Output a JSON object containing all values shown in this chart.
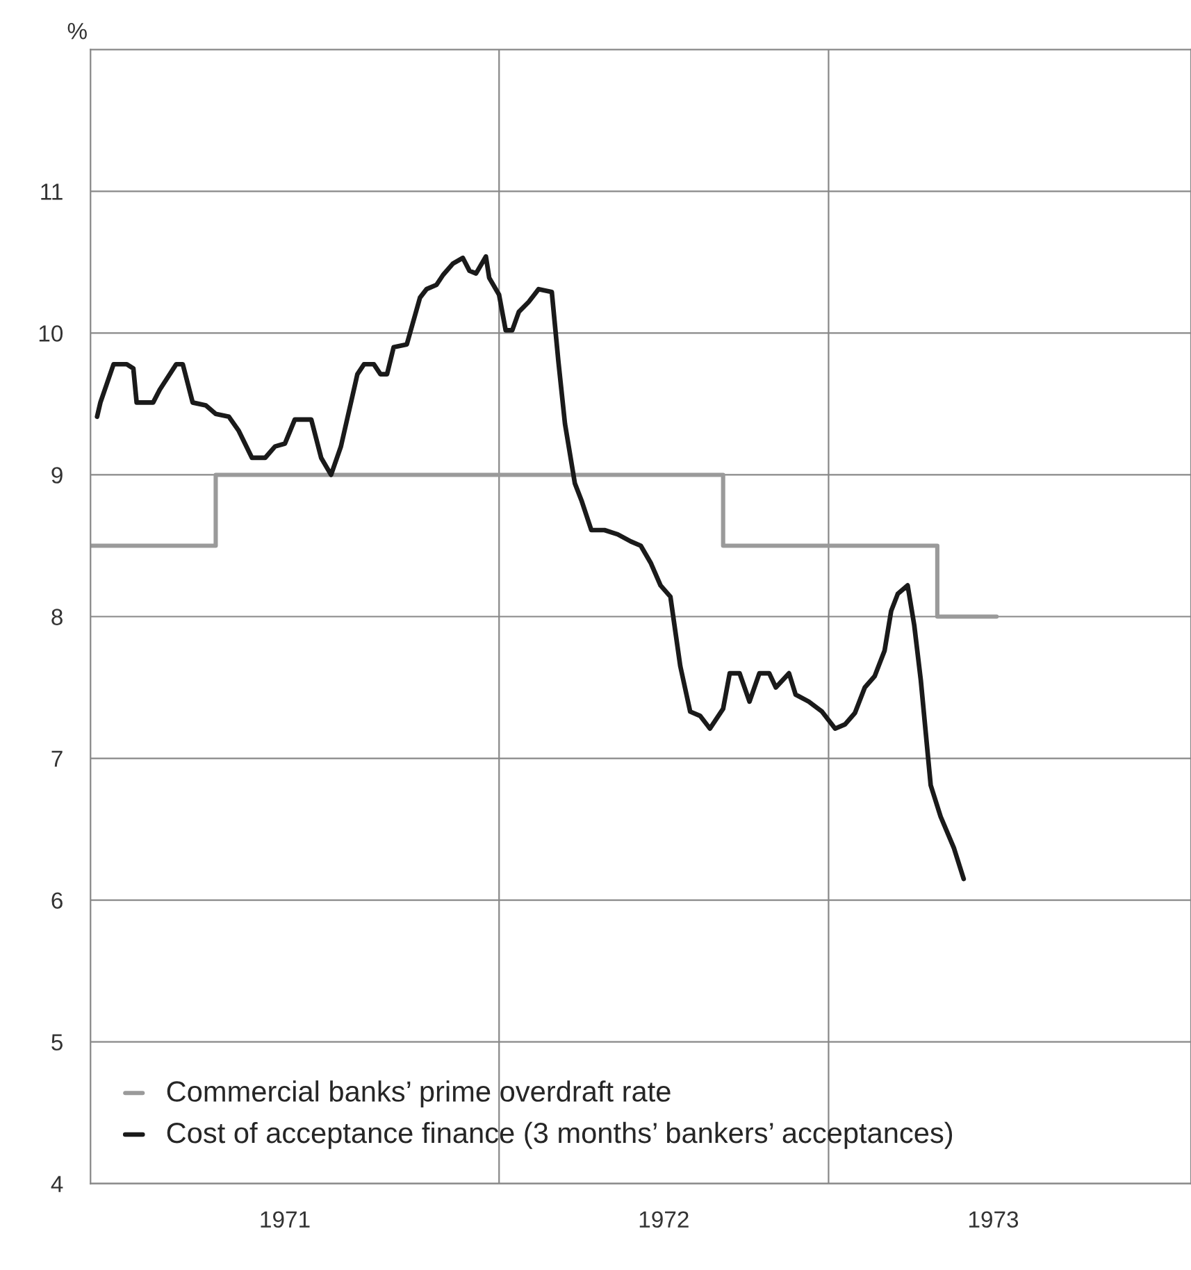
{
  "chart_data": {
    "type": "line",
    "ylabel": "%",
    "ylim": [
      4,
      12
    ],
    "yticks": [
      4,
      5,
      6,
      7,
      8,
      9,
      10,
      11
    ],
    "xlim": [
      1970.76,
      1974.1
    ],
    "xticks": [
      {
        "value": 1971.35,
        "label": "1971"
      },
      {
        "value": 1972,
        "label": null
      },
      {
        "value": 1972.5,
        "label": "1972"
      },
      {
        "value": 1973,
        "label": null
      },
      {
        "value": 1973.5,
        "label": "1973"
      }
    ],
    "grid": true,
    "legend": "bottom left",
    "series": [
      {
        "name": "Commercial banks’ prime overdraft rate",
        "type": "step",
        "color": "#9a9a9a",
        "x": [
          1970.76,
          1971.14,
          1972.68,
          1973.33,
          1973.51
        ],
        "values": [
          8.5,
          9,
          8.5,
          8,
          8
        ]
      },
      {
        "name": "Cost of acceptance finance (3 months’ bankers’ acceptances)",
        "color": "#1a1a1a",
        "x": [
          1970.78,
          1970.79,
          1970.83,
          1970.87,
          1970.89,
          1970.9,
          1970.95,
          1970.97,
          1971.02,
          1971.04,
          1971.07,
          1971.11,
          1971.14,
          1971.18,
          1971.21,
          1971.25,
          1971.29,
          1971.32,
          1971.35,
          1971.38,
          1971.43,
          1971.46,
          1971.49,
          1971.52,
          1971.57,
          1971.59,
          1971.62,
          1971.64,
          1971.66,
          1971.68,
          1971.72,
          1971.76,
          1971.78,
          1971.81,
          1971.83,
          1971.86,
          1971.89,
          1971.91,
          1971.93,
          1971.96,
          1971.97,
          1972.0,
          1972.02,
          1972.04,
          1972.06,
          1972.09,
          1972.12,
          1972.16,
          1972.18,
          1972.2,
          1972.23,
          1972.25,
          1972.28,
          1972.32,
          1972.36,
          1972.4,
          1972.43,
          1972.46,
          1972.49,
          1972.52,
          1972.55,
          1972.58,
          1972.61,
          1972.64,
          1972.68,
          1972.7,
          1972.73,
          1972.76,
          1972.79,
          1972.82,
          1972.84,
          1972.88,
          1972.9,
          1972.94,
          1972.98,
          1973.02,
          1973.05,
          1973.08,
          1973.11,
          1973.14,
          1973.17,
          1973.19,
          1973.21,
          1973.24,
          1973.26,
          1973.28,
          1973.31,
          1973.34,
          1973.38,
          1973.41
        ],
        "values": [
          9.41,
          9.51,
          9.78,
          9.78,
          9.75,
          9.51,
          9.51,
          9.6,
          9.78,
          9.78,
          9.51,
          9.49,
          9.43,
          9.41,
          9.31,
          9.12,
          9.12,
          9.2,
          9.22,
          9.39,
          9.39,
          9.12,
          9.0,
          9.2,
          9.71,
          9.78,
          9.78,
          9.71,
          9.71,
          9.9,
          9.92,
          10.25,
          10.31,
          10.34,
          10.41,
          10.49,
          10.53,
          10.44,
          10.42,
          10.54,
          10.39,
          10.27,
          10.02,
          10.02,
          10.15,
          10.22,
          10.31,
          10.29,
          9.8,
          9.36,
          8.94,
          8.82,
          8.61,
          8.61,
          8.58,
          8.53,
          8.5,
          8.38,
          8.22,
          8.14,
          7.65,
          7.33,
          7.3,
          7.21,
          7.35,
          7.6,
          7.6,
          7.4,
          7.6,
          7.6,
          7.5,
          7.6,
          7.45,
          7.4,
          7.33,
          7.21,
          7.24,
          7.32,
          7.5,
          7.58,
          7.76,
          8.04,
          8.16,
          8.22,
          7.94,
          7.55,
          6.81,
          6.59,
          6.37,
          6.15
        ]
      }
    ]
  }
}
